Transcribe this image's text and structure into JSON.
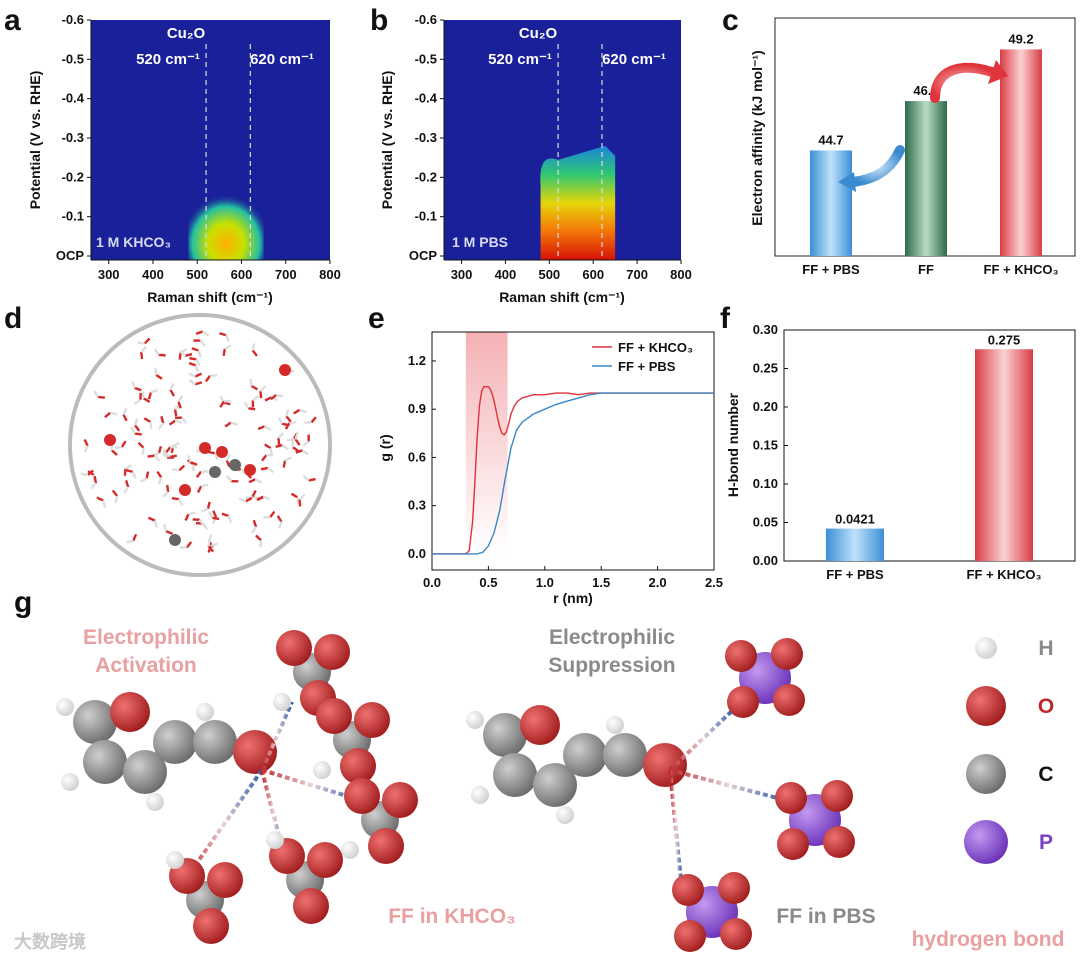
{
  "panel_labels": {
    "a": "a",
    "b": "b",
    "c": "c",
    "d": "d",
    "e": "e",
    "f": "f",
    "g": "g"
  },
  "colors": {
    "heatmap_bg": "#1a1f9a",
    "blue_bar": "#5aa9e0",
    "green_bar": "#3f7d5c",
    "red_bar": "#e0525a",
    "red_line": "#e0303a",
    "blue_line": "#3a86c8",
    "oxygen": "#c93a36",
    "carbon": "#8d8d8d",
    "hydrogen": "#eeeeee",
    "phosphorus": "#8a52cf",
    "pink_text": "#e8a0a0",
    "gray_text": "#8a8a8a"
  },
  "chart_data": [
    {
      "panel": "a",
      "type": "heatmap",
      "xlabel": "Raman shift (cm⁻¹)",
      "ylabel": "Potential (V vs. RHE)",
      "xlim": [
        260,
        800
      ],
      "xticks": [
        "300",
        "400",
        "500",
        "600",
        "700",
        "800"
      ],
      "yticks": [
        "-0.6",
        "-0.5",
        "-0.4",
        "-0.3",
        "-0.2",
        "-0.1",
        "OCP"
      ],
      "species_label": "Cu₂O",
      "peak_labels": [
        "520 cm⁻¹",
        "620 cm⁻¹"
      ],
      "peaks": [
        520,
        620
      ],
      "condition": "1 M KHCO₃",
      "hot_region": {
        "x_range": [
          480,
          650
        ],
        "potential_top": -0.2,
        "intensity": 0.55
      }
    },
    {
      "panel": "b",
      "type": "heatmap",
      "xlabel": "Raman shift (cm⁻¹)",
      "ylabel": "Potential (V vs. RHE)",
      "xlim": [
        260,
        800
      ],
      "xticks": [
        "300",
        "400",
        "500",
        "600",
        "700",
        "800"
      ],
      "yticks": [
        "-0.6",
        "-0.5",
        "-0.4",
        "-0.3",
        "-0.2",
        "-0.1",
        "OCP"
      ],
      "species_label": "Cu₂O",
      "peak_labels": [
        "520 cm⁻¹",
        "620 cm⁻¹"
      ],
      "peaks": [
        520,
        620
      ],
      "condition": "1 M PBS",
      "hot_region": {
        "x_range": [
          480,
          650
        ],
        "potential_top": -0.28,
        "intensity": 1.0
      }
    },
    {
      "panel": "c",
      "type": "bar",
      "categories": [
        "FF + PBS",
        "FF",
        "FF + KHCO₃"
      ],
      "values": [
        44.7,
        46.9,
        49.2
      ],
      "value_labels": [
        "44.7",
        "46.9",
        "49.2"
      ],
      "ylabel": "Electron affinity (kJ mol⁻¹)",
      "ylim": [
        40,
        50.6
      ]
    },
    {
      "panel": "e",
      "type": "line",
      "xlabel": "r (nm)",
      "ylabel": "g (r)",
      "xlim": [
        0,
        2.5
      ],
      "ylim": [
        -0.1,
        1.38
      ],
      "xticks": [
        "0.0",
        "0.5",
        "1.0",
        "1.5",
        "2.0",
        "2.5"
      ],
      "yticks": [
        "0.0",
        "0.3",
        "0.6",
        "0.9",
        "1.2"
      ],
      "highlight_range": [
        0.3,
        0.67
      ],
      "legend_position": "top-right",
      "series": [
        {
          "name": "FF + KHCO₃",
          "x": [
            0,
            0.3,
            0.33,
            0.36,
            0.38,
            0.4,
            0.42,
            0.44,
            0.46,
            0.48,
            0.5,
            0.52,
            0.54,
            0.56,
            0.58,
            0.6,
            0.62,
            0.64,
            0.66,
            0.68,
            0.7,
            0.73,
            0.76,
            0.8,
            0.85,
            0.9,
            1.0,
            1.1,
            1.2,
            1.3,
            1.4,
            1.5,
            1.7,
            1.9,
            2.1,
            2.3,
            2.5
          ],
          "y": [
            0,
            0,
            0.02,
            0.2,
            0.45,
            0.72,
            0.92,
            1.01,
            1.04,
            1.04,
            1.04,
            1.02,
            0.98,
            0.92,
            0.85,
            0.79,
            0.75,
            0.74,
            0.76,
            0.81,
            0.87,
            0.92,
            0.95,
            0.97,
            0.98,
            0.99,
            0.99,
            1.0,
            1.0,
            0.99,
            1.0,
            1.0,
            1.0,
            1.0,
            1.0,
            1.0,
            1.0
          ]
        },
        {
          "name": "FF + PBS",
          "x": [
            0,
            0.4,
            0.45,
            0.5,
            0.55,
            0.6,
            0.65,
            0.7,
            0.75,
            0.8,
            0.9,
            1.0,
            1.1,
            1.2,
            1.3,
            1.4,
            1.5,
            1.7,
            1.9,
            2.1,
            2.3,
            2.5
          ],
          "y": [
            0,
            0,
            0.01,
            0.05,
            0.13,
            0.27,
            0.47,
            0.66,
            0.77,
            0.82,
            0.87,
            0.9,
            0.93,
            0.95,
            0.97,
            0.99,
            1.0,
            1.0,
            1.0,
            1.0,
            1.0,
            1.0
          ]
        }
      ]
    },
    {
      "panel": "f",
      "type": "bar",
      "categories": [
        "FF + PBS",
        "FF + KHCO₃"
      ],
      "values": [
        0.0421,
        0.275
      ],
      "value_labels": [
        "0.0421",
        "0.275"
      ],
      "ylabel": "H-bond number",
      "ylim": [
        0,
        0.3
      ],
      "yticks": [
        "0.00",
        "0.05",
        "0.10",
        "0.15",
        "0.20",
        "0.25",
        "0.30"
      ]
    }
  ],
  "panel_g": {
    "left_title_lines": [
      "Electrophilic",
      "Activation"
    ],
    "right_title_lines": [
      "Electrophilic",
      "Suppression"
    ],
    "left_caption": "FF in KHCO₃",
    "right_caption": "FF in PBS",
    "legend": [
      {
        "symbol": "H",
        "label": "H",
        "color": "#8a8a8a"
      },
      {
        "symbol": "O",
        "label": "O",
        "color": "#c0282c"
      },
      {
        "symbol": "C",
        "label": "C",
        "color": "#111111"
      },
      {
        "symbol": "P",
        "label": "P",
        "color": "#7a3fc4"
      }
    ],
    "bond_legend": "hydrogen bond"
  },
  "watermark": "大数跨境"
}
